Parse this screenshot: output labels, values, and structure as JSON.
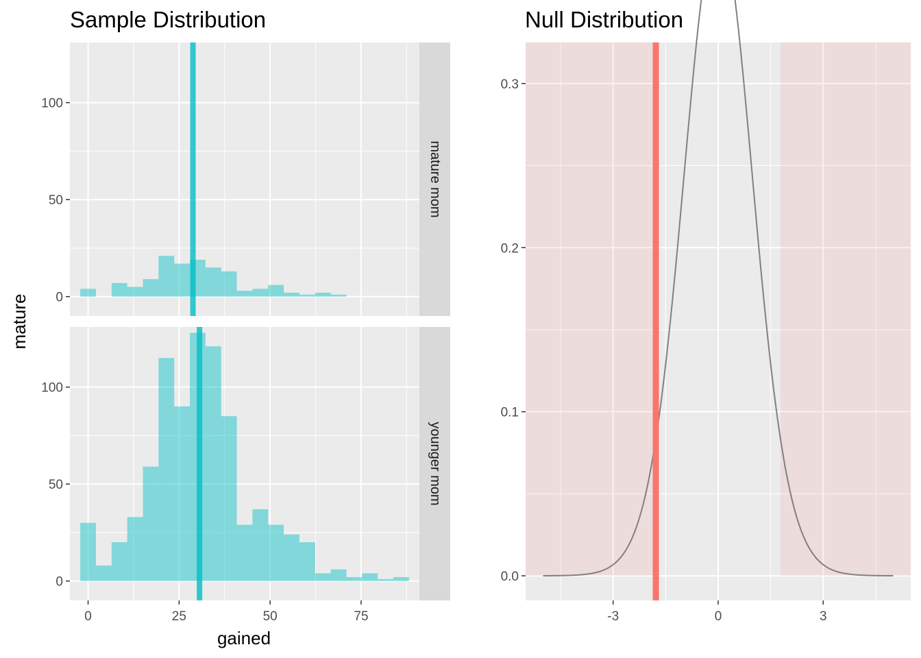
{
  "chart_data": [
    {
      "type": "bar",
      "title": "Sample Distribution",
      "xlabel": "gained",
      "ylabel": "mature",
      "xlim": [
        -5,
        91
      ],
      "ylim": [
        -10,
        131
      ],
      "x_ticks": [
        0,
        25,
        50,
        75
      ],
      "y_ticks": [
        0,
        50,
        100
      ],
      "grid": true,
      "bin_width": 4.3,
      "color": "#00BFC4",
      "panels": [
        {
          "strip_label": "mature mom",
          "mean_line": 28.8,
          "bins": [
            {
              "x": 0,
              "count": 4
            },
            {
              "x": 8.6,
              "count": 7
            },
            {
              "x": 12.9,
              "count": 5
            },
            {
              "x": 17.2,
              "count": 9
            },
            {
              "x": 21.5,
              "count": 21
            },
            {
              "x": 25.8,
              "count": 17
            },
            {
              "x": 30.1,
              "count": 19
            },
            {
              "x": 34.4,
              "count": 15
            },
            {
              "x": 38.7,
              "count": 13
            },
            {
              "x": 43.0,
              "count": 3
            },
            {
              "x": 47.3,
              "count": 4
            },
            {
              "x": 51.6,
              "count": 6
            },
            {
              "x": 55.9,
              "count": 2
            },
            {
              "x": 60.2,
              "count": 1
            },
            {
              "x": 64.5,
              "count": 2
            },
            {
              "x": 68.8,
              "count": 1
            }
          ]
        },
        {
          "strip_label": "younger mom",
          "mean_line": 30.6,
          "bins": [
            {
              "x": 0,
              "count": 30
            },
            {
              "x": 4.3,
              "count": 8
            },
            {
              "x": 8.6,
              "count": 20
            },
            {
              "x": 12.9,
              "count": 33
            },
            {
              "x": 17.2,
              "count": 59
            },
            {
              "x": 21.5,
              "count": 115
            },
            {
              "x": 25.8,
              "count": 90
            },
            {
              "x": 30.1,
              "count": 128
            },
            {
              "x": 34.4,
              "count": 121
            },
            {
              "x": 38.7,
              "count": 85
            },
            {
              "x": 43.0,
              "count": 29
            },
            {
              "x": 47.3,
              "count": 37
            },
            {
              "x": 51.6,
              "count": 29
            },
            {
              "x": 55.9,
              "count": 24
            },
            {
              "x": 60.2,
              "count": 20
            },
            {
              "x": 64.5,
              "count": 4
            },
            {
              "x": 68.8,
              "count": 6
            },
            {
              "x": 73.1,
              "count": 2
            },
            {
              "x": 77.4,
              "count": 4
            },
            {
              "x": 81.7,
              "count": 1
            },
            {
              "x": 86.0,
              "count": 2
            }
          ]
        }
      ]
    },
    {
      "type": "line",
      "title": "Null Distribution",
      "xlabel": "",
      "ylabel": "",
      "xlim": [
        -5.5,
        5.5
      ],
      "ylim": [
        -0.015,
        0.325
      ],
      "x_ticks": [
        -3,
        0,
        3
      ],
      "x_tick_labels": [
        "-3",
        "0",
        "3"
      ],
      "y_ticks": [
        0.0,
        0.1,
        0.2,
        0.3
      ],
      "y_tick_labels": [
        "0.0",
        "0.1",
        "0.2",
        "0.3"
      ],
      "grid": true,
      "curve": {
        "distribution": "t",
        "df": 30,
        "from": -5,
        "to": 5,
        "color": "#808080"
      },
      "observed_statistic": -1.78,
      "observed_color": "#F8766D",
      "shaded_regions": [
        {
          "from": -5.5,
          "to": -1.78
        },
        {
          "from": 1.78,
          "to": 5.5
        }
      ],
      "shade_color": "#F8766D"
    }
  ]
}
